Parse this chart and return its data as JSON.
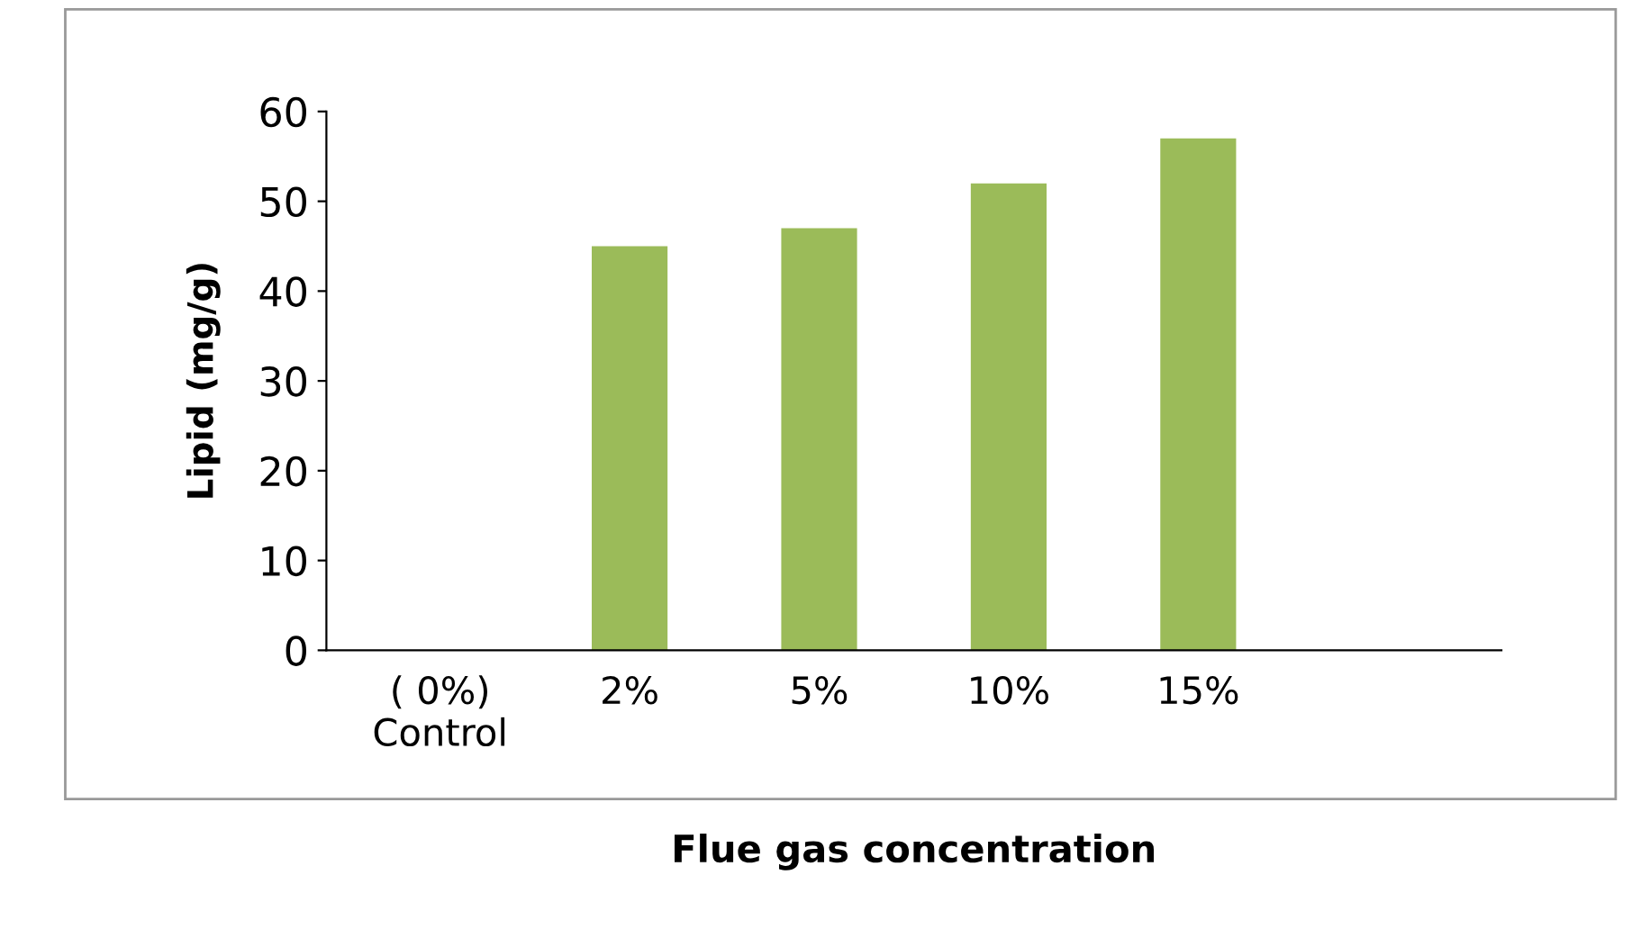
{
  "chart_data": {
    "type": "bar",
    "xlabel": "Flue gas concentration",
    "ylabel": "Lipid (mg/g)",
    "categories": [
      "( 0%)\nControl",
      "2%",
      "5%",
      "10%",
      "15%"
    ],
    "values": [
      0,
      45,
      47,
      52,
      57
    ],
    "color": "#9bbb59",
    "ylim": [
      0,
      60
    ],
    "yticks": [
      0,
      10,
      20,
      30,
      40,
      50,
      60
    ],
    "grid": false
  }
}
